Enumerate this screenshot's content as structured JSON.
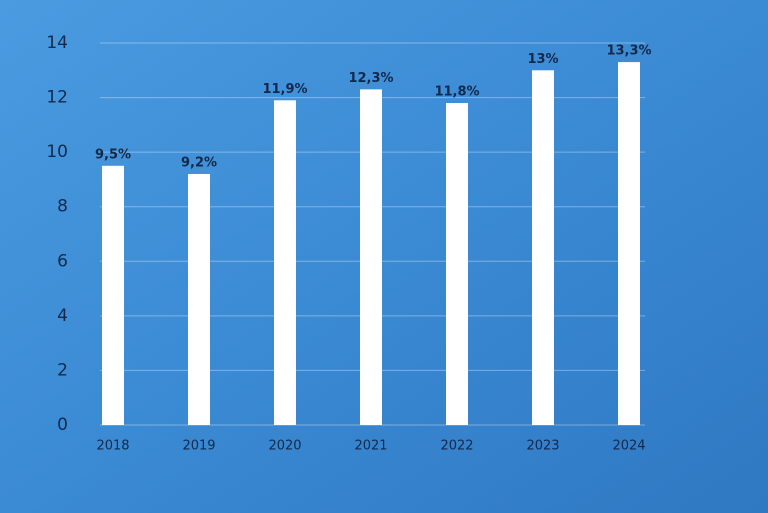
{
  "chart_data": {
    "type": "bar",
    "categories": [
      "2018",
      "2019",
      "2020",
      "2021",
      "2022",
      "2023",
      "2024"
    ],
    "values": [
      9.5,
      9.2,
      11.9,
      12.3,
      11.8,
      13,
      13.3
    ],
    "value_labels": [
      "9,5%",
      "9,2%",
      "11,9%",
      "12,3%",
      "11,8%",
      "13%",
      "13,3%"
    ],
    "color": "#ffffff",
    "ylim": [
      0,
      14
    ],
    "yticks": [
      0,
      2,
      4,
      6,
      8,
      10,
      12,
      14
    ],
    "grid": true
  }
}
